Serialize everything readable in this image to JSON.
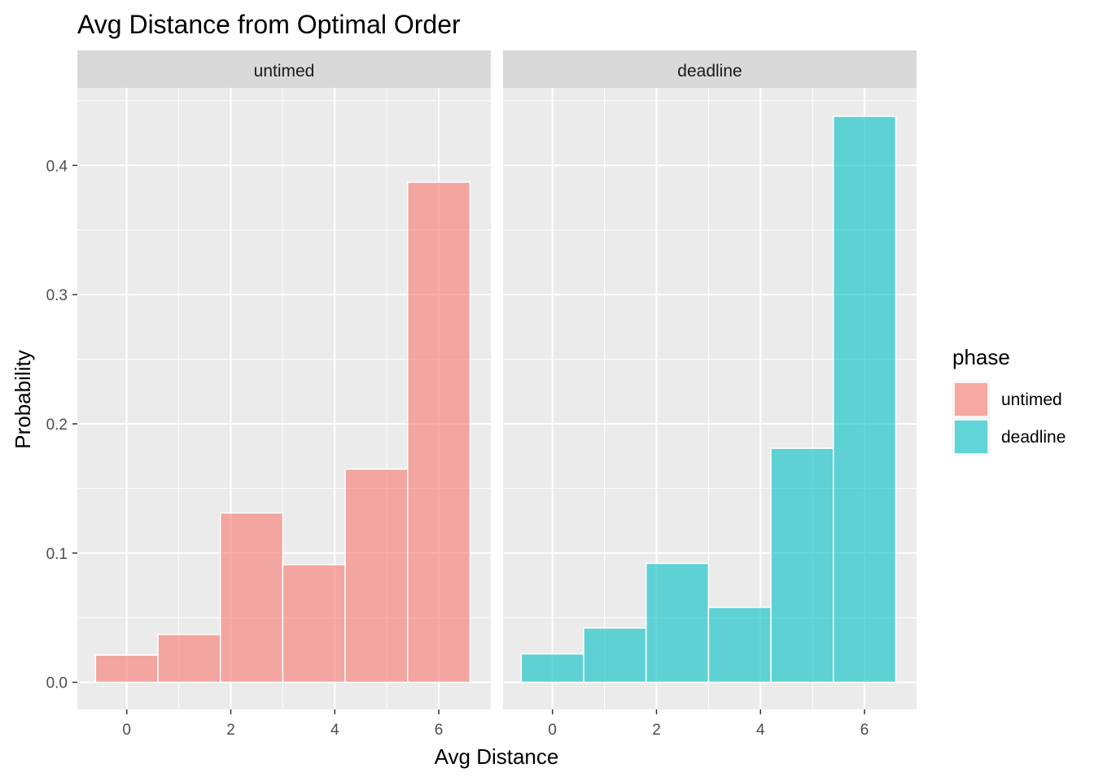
{
  "chart_data": {
    "type": "bar",
    "subtype": "faceted-histogram",
    "title": "Avg Distance from Optimal Order",
    "xlabel": "Avg Distance",
    "ylabel": "Probability",
    "xlim": [
      -0.95,
      7.0
    ],
    "ylim": [
      -0.021,
      0.46
    ],
    "x_ticks": [
      0,
      2,
      4,
      6
    ],
    "x_tick_labels": [
      "0",
      "2",
      "4",
      "6"
    ],
    "y_ticks": [
      0.0,
      0.1,
      0.2,
      0.3,
      0.4
    ],
    "y_tick_labels": [
      "0.0",
      "0.1",
      "0.2",
      "0.3",
      "0.4"
    ],
    "grid": true,
    "bin_edges": [
      -0.6,
      0.6,
      1.8,
      3.0,
      4.2,
      5.4,
      6.6
    ],
    "legend": {
      "title": "phase",
      "placement": "right",
      "entries": [
        {
          "label": "untimed",
          "color": "#F8766D"
        },
        {
          "label": "deadline",
          "color": "#00BFC4"
        }
      ]
    },
    "panels": [
      {
        "name": "untimed",
        "color": "#F8766D",
        "values": [
          0.021,
          0.037,
          0.131,
          0.091,
          0.165,
          0.387
        ]
      },
      {
        "name": "deadline",
        "color": "#00BFC4",
        "values": [
          0.022,
          0.042,
          0.092,
          0.058,
          0.181,
          0.438
        ]
      }
    ]
  }
}
